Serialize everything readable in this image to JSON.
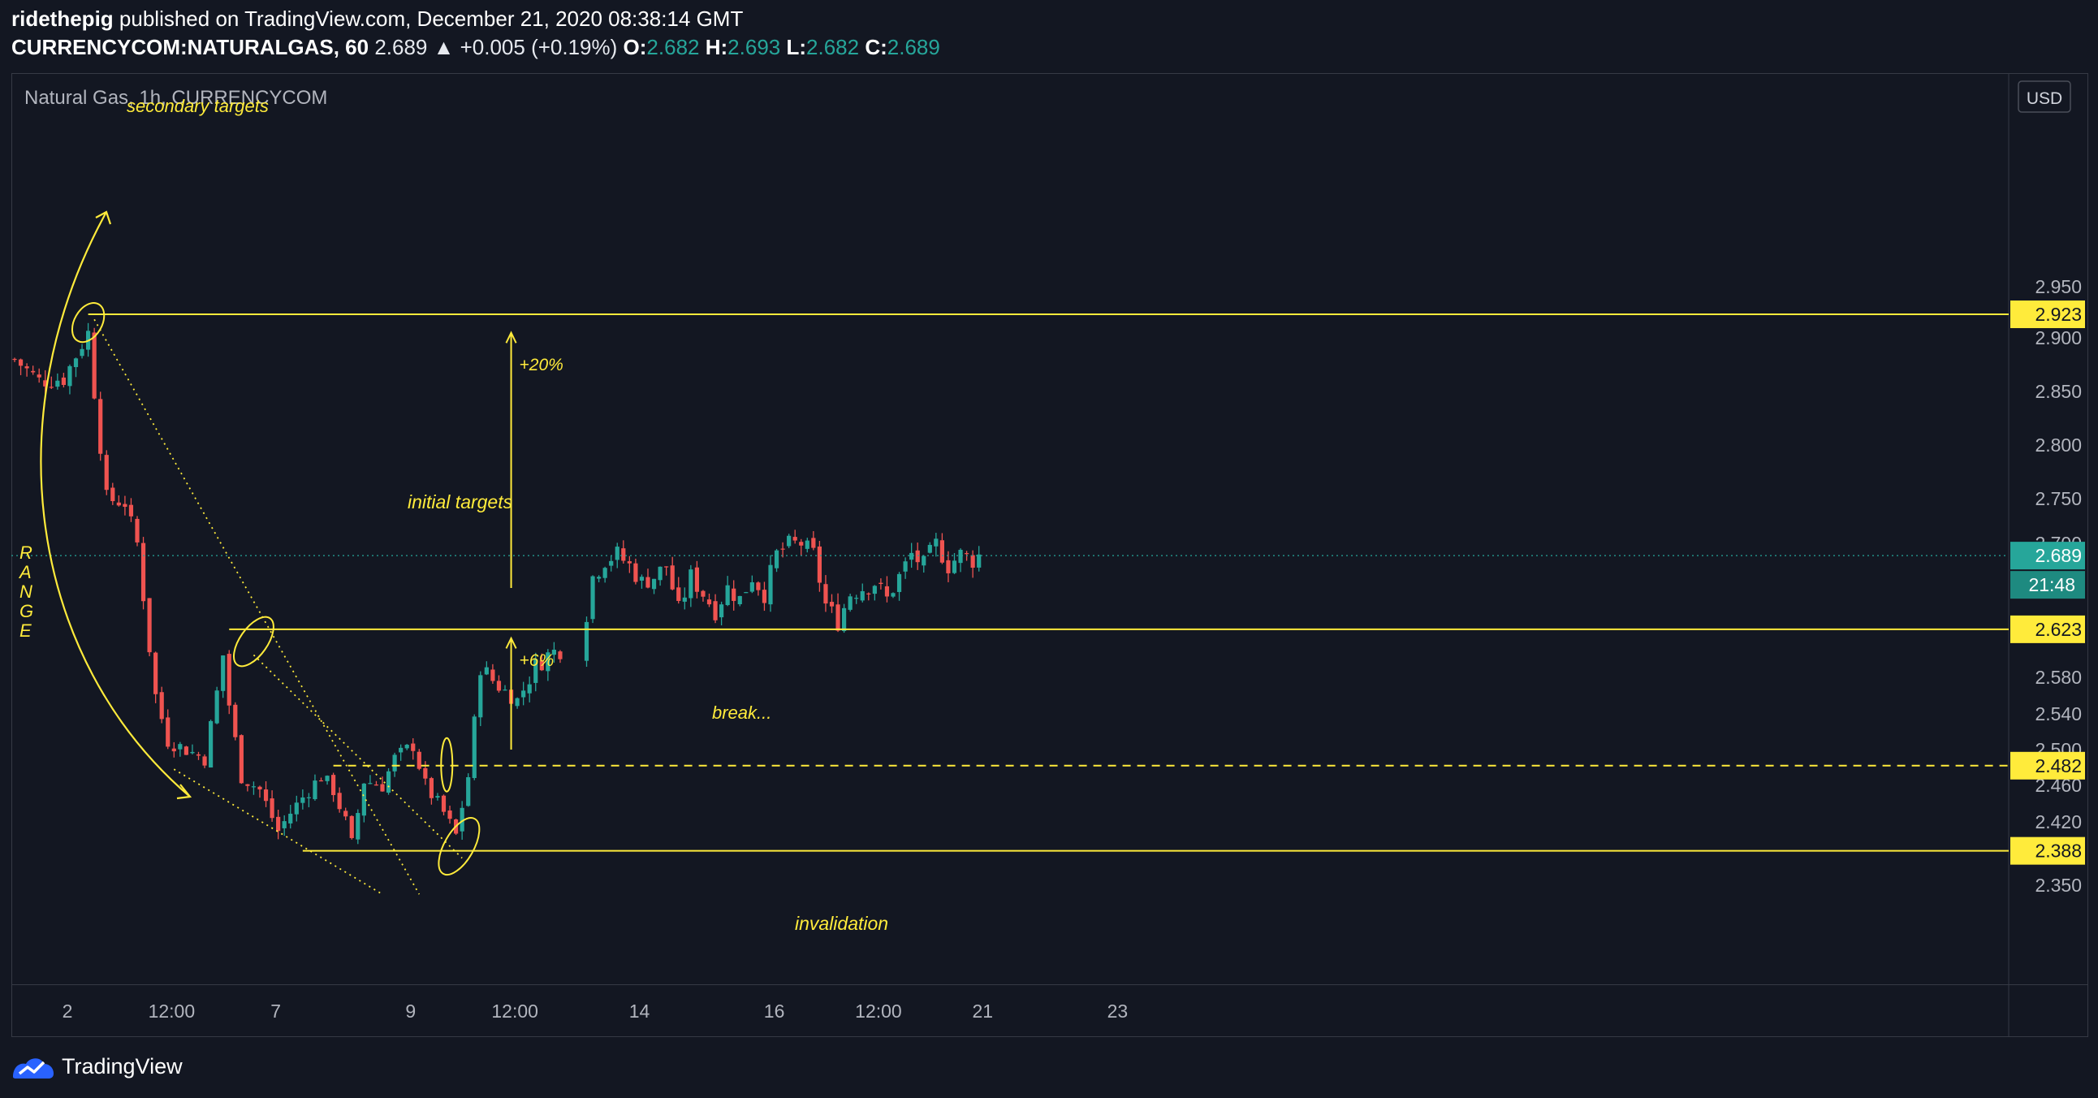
{
  "header": {
    "author": "ridethepig",
    "published_text": "published on TradingView.com, December 21, 2020 08:38:14 GMT",
    "symbol": "CURRENCYCOM:NATURALGAS, 60",
    "last": "2.689",
    "change": "▲ +0.005 (+0.19%)",
    "o_label": "O:",
    "o_value": "2.682",
    "h_label": "H:",
    "h_value": "2.693",
    "l_label": "L:",
    "l_value": "2.682",
    "c_label": "C:",
    "c_value": "2.689"
  },
  "footer": {
    "brand": "TradingView",
    "icon": "tradingview-logo-icon"
  },
  "chart_data": {
    "type": "candlestick",
    "title": "Natural Gas, 1h, CURRENCYCOM",
    "currency_label": "USD",
    "ylim": [
      2.325,
      2.97
    ],
    "y_ticks": [
      "2.950",
      "2.900",
      "2.850",
      "2.800",
      "2.750",
      "2.700",
      "2.580",
      "2.540",
      "2.500",
      "2.460",
      "2.420",
      "2.350"
    ],
    "y_tick_values": [
      2.95,
      2.9,
      2.85,
      2.8,
      2.75,
      2.7,
      2.58,
      2.54,
      2.5,
      2.46,
      2.42,
      2.35
    ],
    "x_ticks": [
      "2",
      "12:00",
      "7",
      "9",
      "12:00",
      "14",
      "16",
      "12:00",
      "21",
      "23"
    ],
    "x_tick_index": [
      0,
      17,
      34,
      56,
      73,
      90,
      112,
      129,
      146,
      168
    ],
    "bar_count": 175,
    "grid": false,
    "colors": {
      "up": "#26a69a",
      "down": "#ef5350",
      "annotation": "#ffeb3b",
      "price_line": "#26a69a",
      "axis_text": "#b2b5be"
    },
    "price_labels": [
      {
        "value": 2.923,
        "text": "2.923"
      },
      {
        "value": 2.623,
        "text": "2.623"
      },
      {
        "value": 2.482,
        "text": "2.482"
      },
      {
        "value": 2.388,
        "text": "2.388"
      }
    ],
    "current_price": {
      "value": 2.689,
      "text": "2.689",
      "countdown": "21:48"
    },
    "levels": [
      {
        "value": 2.923,
        "style": "solid",
        "from_index": 12
      },
      {
        "value": 2.623,
        "style": "solid",
        "from_index": 35
      },
      {
        "value": 2.482,
        "style": "dashed",
        "from_index": 52
      },
      {
        "value": 2.388,
        "style": "solid",
        "from_index": 47
      }
    ],
    "annotations": {
      "secondary_targets": "secondary targets",
      "initial_targets": "initial targets",
      "range": "RANGE",
      "plus20": "+20%",
      "plus6": "+6%",
      "break": "break...",
      "invalidation": "invalidation"
    },
    "ohlc_anchors": [
      [
        0,
        2.88
      ],
      [
        4,
        2.86
      ],
      [
        8,
        2.862
      ],
      [
        12,
        2.905
      ],
      [
        13,
        2.85
      ],
      [
        15,
        2.75
      ],
      [
        18,
        2.745
      ],
      [
        20,
        2.7
      ],
      [
        23,
        2.56
      ],
      [
        25,
        2.51
      ],
      [
        28,
        2.5
      ],
      [
        31,
        2.49
      ],
      [
        34,
        2.6
      ],
      [
        35,
        2.55
      ],
      [
        37,
        2.47
      ],
      [
        40,
        2.455
      ],
      [
        43,
        2.41
      ],
      [
        45,
        2.43
      ],
      [
        48,
        2.455
      ],
      [
        50,
        2.47
      ],
      [
        52,
        2.455
      ],
      [
        54,
        2.42
      ],
      [
        55,
        2.395
      ],
      [
        57,
        2.465
      ],
      [
        60,
        2.46
      ],
      [
        62,
        2.49
      ],
      [
        65,
        2.505
      ],
      [
        67,
        2.46
      ],
      [
        70,
        2.43
      ],
      [
        72,
        2.405
      ],
      [
        74,
        2.47
      ],
      [
        76,
        2.59
      ],
      [
        79,
        2.57
      ],
      [
        82,
        2.555
      ],
      [
        85,
        2.59
      ],
      [
        87,
        2.6
      ],
      [
        88,
        2.603
      ],
      [
        89,
        2.605
      ],
      [
        91,
        2.67
      ],
      [
        93,
        2.685
      ],
      [
        95,
        2.69
      ],
      [
        97,
        2.68
      ],
      [
        99,
        2.665
      ],
      [
        101,
        2.67
      ],
      [
        103,
        2.68
      ],
      [
        105,
        2.64
      ],
      [
        107,
        2.67
      ],
      [
        109,
        2.655
      ],
      [
        111,
        2.64
      ],
      [
        113,
        2.66
      ],
      [
        115,
        2.65
      ],
      [
        117,
        2.67
      ],
      [
        119,
        2.655
      ],
      [
        121,
        2.69
      ],
      [
        123,
        2.7
      ],
      [
        125,
        2.7
      ],
      [
        127,
        2.69
      ],
      [
        129,
        2.645
      ],
      [
        131,
        2.63
      ],
      [
        133,
        2.655
      ],
      [
        135,
        2.66
      ],
      [
        137,
        2.665
      ],
      [
        139,
        2.65
      ],
      [
        141,
        2.67
      ],
      [
        143,
        2.69
      ],
      [
        145,
        2.68
      ],
      [
        147,
        2.7
      ],
      [
        149,
        2.68
      ],
      [
        151,
        2.69
      ],
      [
        153,
        2.685
      ],
      [
        154,
        2.689
      ]
    ],
    "gap_before_index": 90,
    "source_scale": {
      "x_origin_index": 0
    }
  }
}
